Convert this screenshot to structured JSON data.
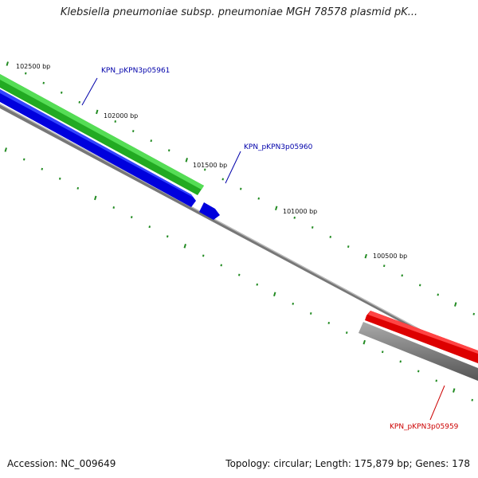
{
  "title": "Klebsiella pneumoniae subsp. pneumoniae MGH 78578 plasmid pK...",
  "footer": {
    "accession": "Accession: NC_009649",
    "summary": "Topology: circular; Length: 175,879 bp; Genes: 178"
  },
  "ticks": {
    "t102500": "102500 bp",
    "t102000": "102000 bp",
    "t101500": "101500 bp",
    "t101000": "101000 bp",
    "t100500": "100500 bp"
  },
  "genes": {
    "g05961": {
      "label": "KPN_pKPN3p05961",
      "color": "#0000aa"
    },
    "g05960": {
      "label": "KPN_pKPN3p05960",
      "color": "#0000aa"
    },
    "g05959": {
      "label": "KPN_pKPN3p05959",
      "color": "#cc0000"
    }
  },
  "colors": {
    "forward_gene": "#33cc33",
    "reverse_gene": "#0000ee",
    "red_gene": "#ee0000",
    "gray_track": "#666666",
    "backbone": "#888888",
    "tick": "#228b22"
  }
}
